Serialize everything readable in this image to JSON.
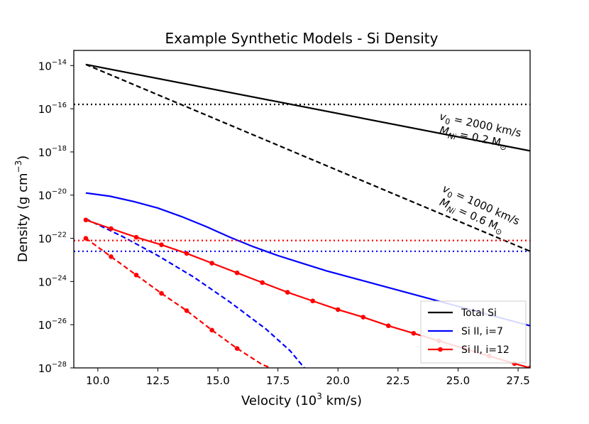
{
  "chart_data": {
    "type": "line",
    "title": "Example Synthetic Models - Si Density",
    "xlabel": "Velocity (10",
    "xlabel_sup": "3",
    "xlabel_unit": " km/s)",
    "ylabel": "Density (g cm",
    "ylabel_sup": "−3",
    "ylabel_end": ")",
    "xlim": [
      9.0,
      28.0
    ],
    "ylim_log10": [
      -28,
      -13.3
    ],
    "x_ticks": [
      10.0,
      12.5,
      15.0,
      17.5,
      20.0,
      22.5,
      25.0,
      27.5
    ],
    "x_tick_labels": [
      "10.0",
      "12.5",
      "15.0",
      "17.5",
      "20.0",
      "22.5",
      "25.0",
      "27.5"
    ],
    "y_ticks_log10": [
      -14,
      -16,
      -18,
      -20,
      -22,
      -24,
      -26,
      -28
    ],
    "y_tick_base": "10",
    "y_tick_exponents": [
      "−14",
      "−16",
      "−18",
      "−20",
      "−22",
      "−24",
      "−26",
      "−28"
    ],
    "legend": {
      "placement": "lower-right",
      "entries": [
        {
          "label": "Total Si",
          "color": "#000000",
          "marker": false
        },
        {
          "label": "Si II, i=7",
          "color": "#0000ff",
          "marker": false
        },
        {
          "label": "Si II, i=12",
          "color": "#ff0000",
          "marker": true
        }
      ]
    },
    "series": [
      {
        "name": "Total Si v0=2000 (solid)",
        "color": "#000000",
        "dash": "solid",
        "marker": false,
        "x": [
          9.5,
          28.0
        ],
        "log10_y": [
          -13.95,
          -17.95
        ]
      },
      {
        "name": "Total Si v0=1000 (dashed)",
        "color": "#000000",
        "dash": "dashed",
        "marker": false,
        "x": [
          9.5,
          28.0
        ],
        "log10_y": [
          -13.95,
          -22.6
        ]
      },
      {
        "name": "Total Si threshold (dotted)",
        "color": "#000000",
        "dash": "dotted",
        "marker": false,
        "x": [
          9.0,
          28.0
        ],
        "log10_y": [
          -15.8,
          -15.8
        ]
      },
      {
        "name": "Si II, i=7 (solid)",
        "color": "#0000ff",
        "dash": "solid",
        "marker": false,
        "x": [
          9.5,
          10.5,
          11.5,
          12.5,
          13.5,
          14.5,
          15.5,
          16.5,
          17.5,
          18.5,
          19.5,
          20.5,
          21.5,
          22.5,
          23.5,
          24.5,
          25.5,
          26.5,
          27.5,
          28.0
        ],
        "log10_y": [
          -19.9,
          -20.05,
          -20.3,
          -20.6,
          -21.0,
          -21.45,
          -21.95,
          -22.4,
          -22.8,
          -23.15,
          -23.5,
          -23.8,
          -24.1,
          -24.4,
          -24.7,
          -25.0,
          -25.3,
          -25.6,
          -25.9,
          -26.05
        ]
      },
      {
        "name": "Si II, i=7 (dashed)",
        "color": "#0000ff",
        "dash": "dashed",
        "marker": false,
        "x": [
          9.5,
          11.0,
          12.5,
          14.0,
          15.5,
          17.0,
          18.0,
          18.6
        ],
        "log10_y": [
          -21.1,
          -21.9,
          -22.8,
          -23.8,
          -24.95,
          -26.2,
          -27.2,
          -28.0
        ]
      },
      {
        "name": "Si II, i=7 threshold (dotted)",
        "color": "#0000ff",
        "dash": "dotted",
        "marker": false,
        "x": [
          9.0,
          28.0
        ],
        "log10_y": [
          -22.6,
          -22.6
        ]
      },
      {
        "name": "Si II, i=12",
        "color": "#ff0000",
        "dash": "solid",
        "marker": true,
        "x": [
          9.5,
          10.55,
          11.6,
          12.65,
          13.7,
          14.75,
          15.8,
          16.85,
          17.9,
          18.95,
          20.0,
          21.05,
          22.1,
          23.15,
          24.2,
          25.25,
          26.3,
          27.35,
          28.0
        ],
        "log10_y": [
          -21.15,
          -21.55,
          -21.95,
          -22.3,
          -22.7,
          -23.15,
          -23.6,
          -24.05,
          -24.5,
          -24.9,
          -25.3,
          -25.65,
          -26.05,
          -26.4,
          -26.75,
          -27.1,
          -27.45,
          -27.8,
          -28.0
        ]
      },
      {
        "name": "Si II, i=12 (dashed)",
        "color": "#ff0000",
        "dash": "dashed",
        "marker": true,
        "x": [
          9.5,
          10.55,
          11.6,
          12.65,
          13.7,
          14.75,
          15.8,
          16.85,
          17.2
        ],
        "log10_y": [
          -22.0,
          -22.85,
          -23.7,
          -24.55,
          -25.35,
          -26.25,
          -27.1,
          -27.85,
          -28.0
        ],
        "marker_count": 7
      },
      {
        "name": "Si II, i=12 threshold (dotted)",
        "color": "#ff0000",
        "dash": "dotted",
        "marker": false,
        "x": [
          9.0,
          28.0
        ],
        "log10_y": [
          -22.1,
          -22.1
        ]
      }
    ],
    "annotations": [
      {
        "line1_base": "v",
        "line1_sub": "0",
        "line1_rest": " = 2000 km/s",
        "line2_base": "M",
        "line2_sub": "Ni",
        "line2_rest": " = 0.2 M",
        "line2_sym": "⊙",
        "x": 25.9,
        "log10_y": -16.9,
        "rotation_deg": 12
      },
      {
        "line1_base": "v",
        "line1_sub": "0",
        "line1_rest": " = 1000 km/s",
        "line2_base": "M",
        "line2_sub": "Ni",
        "line2_rest": " = 0.6 M",
        "line2_sym": "⊙",
        "x": 25.9,
        "log10_y": -20.6,
        "rotation_deg": 24
      }
    ]
  }
}
